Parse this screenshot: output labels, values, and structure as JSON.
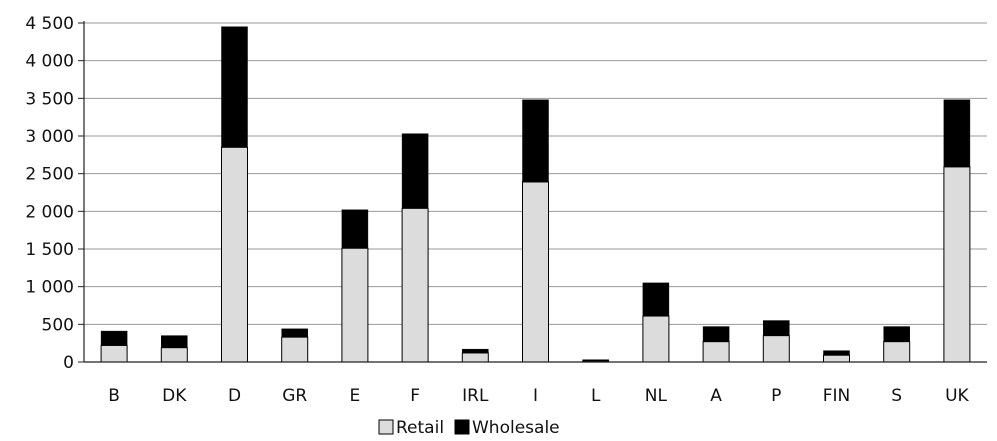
{
  "chart_data": {
    "type": "bar",
    "stacked": true,
    "title": "",
    "xlabel": "",
    "ylabel": "",
    "categories": [
      "B",
      "DK",
      "D",
      "GR",
      "E",
      "F",
      "IRL",
      "I",
      "L",
      "NL",
      "A",
      "P",
      "FIN",
      "S",
      "UK"
    ],
    "series": [
      {
        "name": "Retail",
        "color": "#dcdcdc",
        "values": [
          220,
          190,
          2850,
          330,
          1510,
          2040,
          120,
          2390,
          10,
          610,
          270,
          350,
          90,
          270,
          2590
        ]
      },
      {
        "name": "Wholesale",
        "color": "#000000",
        "values": [
          190,
          160,
          1600,
          110,
          510,
          990,
          50,
          1090,
          20,
          440,
          200,
          200,
          60,
          200,
          890
        ]
      }
    ],
    "ylim": [
      0,
      4500
    ],
    "y_ticks": [
      0,
      500,
      1000,
      1500,
      2000,
      2500,
      3000,
      3500,
      4000,
      4500
    ],
    "y_tick_labels": [
      "0",
      "500",
      "1 000",
      "1 500",
      "2 000",
      "2 500",
      "3 000",
      "3 500",
      "4 000",
      "4 500"
    ],
    "grid": true,
    "legend": {
      "position": "bottom",
      "entries": [
        "Retail",
        "Wholesale"
      ]
    }
  }
}
